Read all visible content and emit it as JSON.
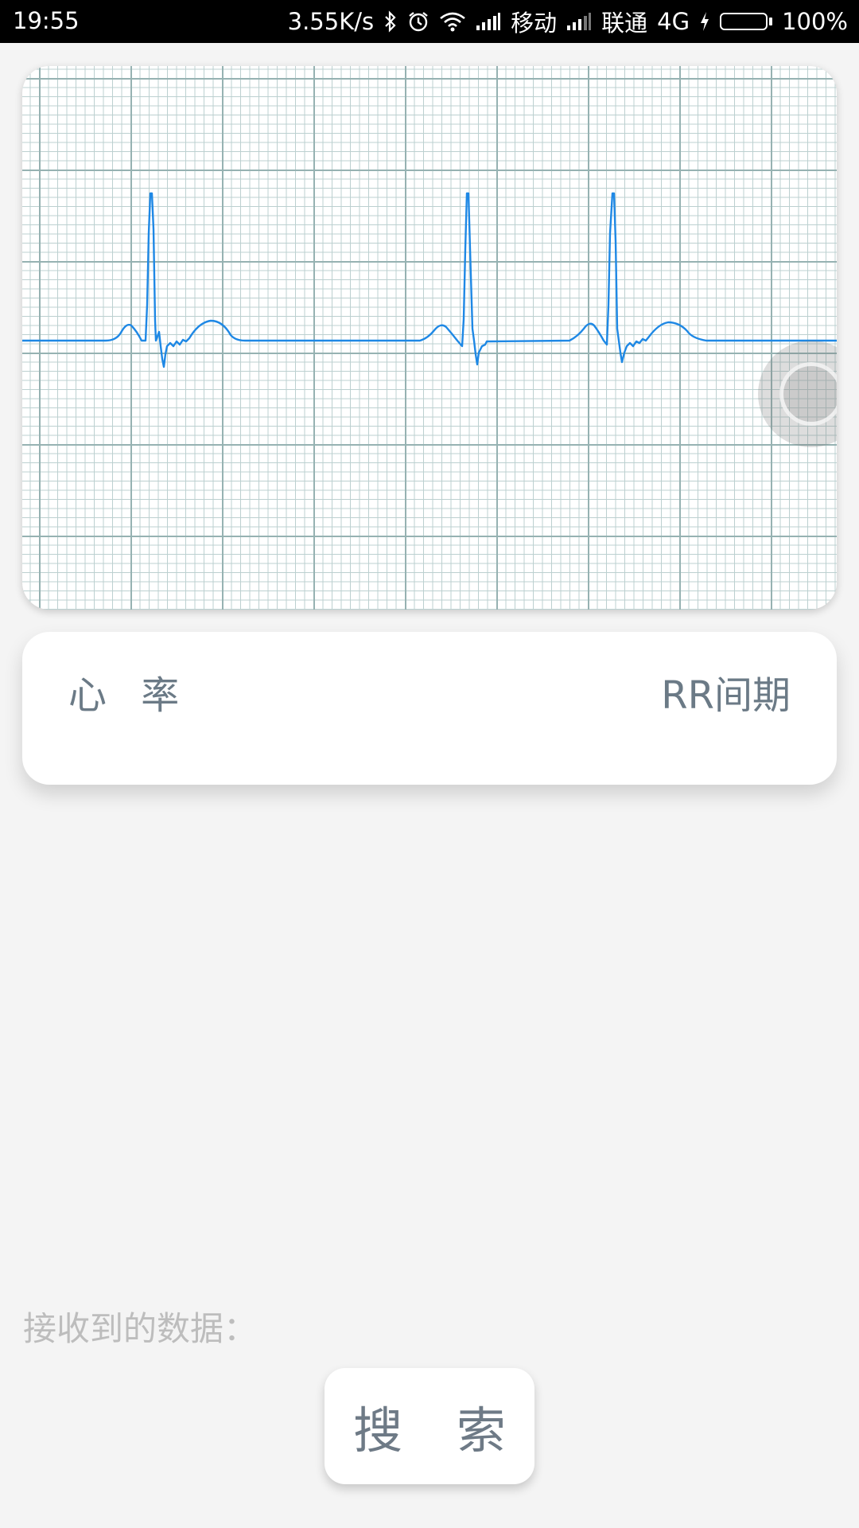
{
  "status_bar": {
    "time": "19:55",
    "net_speed": "3.55K/s",
    "carrier1": "移动",
    "carrier2": "联通",
    "network_type": "4G",
    "battery": "100%",
    "icons": [
      "bluetooth-icon",
      "alarm-icon",
      "wifi-icon",
      "signal-icon",
      "signal-icon",
      "charging-icon",
      "battery-icon"
    ],
    "battery_color": "#58d320"
  },
  "ecg": {
    "trace_color": "#1e88e5",
    "grid_major_color": "#96b2b2",
    "grid_minor_color": "#bcd0d0"
  },
  "metrics": {
    "heart_rate_label": "心 率",
    "rr_interval_label": "RR间期"
  },
  "received_label": "接收到的数据：",
  "search_button": "搜 索"
}
